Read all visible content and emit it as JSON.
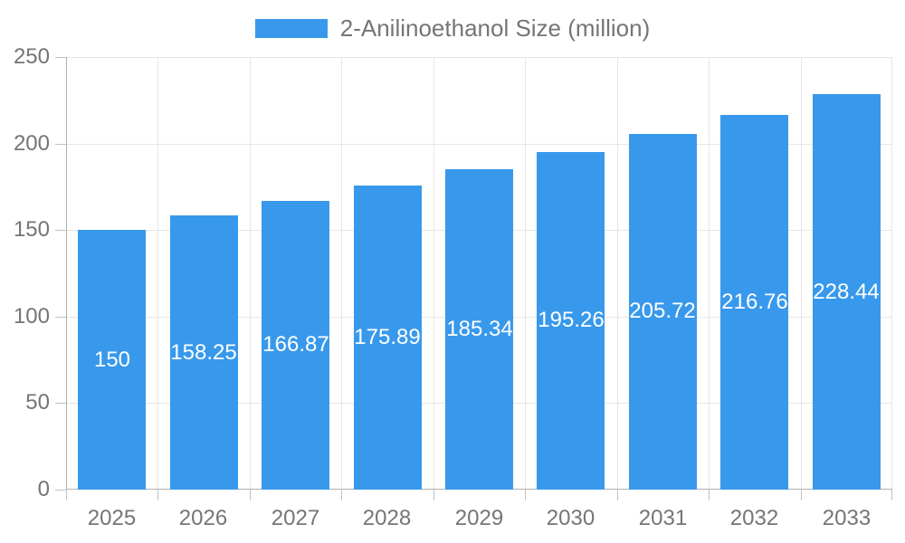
{
  "legend": {
    "label": "2-Anilinoethanol Size (million)"
  },
  "colors": {
    "bar": "#3899EC",
    "axis_line": "#b0b0b0",
    "gridline": "#e6e6e6",
    "tick_mark": "#c2c2c2",
    "tick_label": "#757575",
    "legend_text": "#757575",
    "value_label": "#ffffff",
    "background": "#ffffff"
  },
  "chart_data": {
    "type": "bar",
    "title": "2-Anilinoethanol Size (million)",
    "series": [
      {
        "name": "2-Anilinoethanol Size (million)",
        "values": [
          150,
          158.25,
          166.87,
          175.89,
          185.34,
          195.26,
          205.72,
          216.76,
          228.44
        ],
        "value_labels": [
          "150",
          "158.25",
          "166.87",
          "175.89",
          "185.34",
          "195.26",
          "205.72",
          "216.76",
          "228.44"
        ],
        "color": "#3899EC"
      }
    ],
    "categories": [
      "2025",
      "2026",
      "2027",
      "2028",
      "2029",
      "2030",
      "2031",
      "2032",
      "2033"
    ],
    "xlabel": "",
    "ylabel": "",
    "ylim": [
      0,
      250
    ],
    "yticks": [
      0,
      50,
      100,
      150,
      200,
      250
    ],
    "grid": true,
    "legend_position": "top",
    "value_label_position": "inside-center"
  }
}
